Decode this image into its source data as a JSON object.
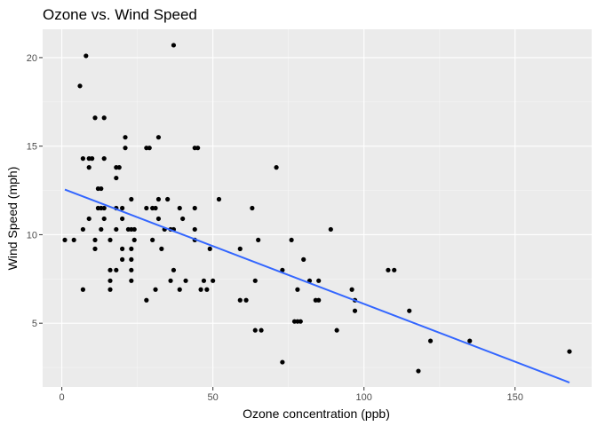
{
  "chart_data": {
    "type": "scatter",
    "title": "Ozone vs. Wind Speed",
    "xlabel": "Ozone concentration (ppb)",
    "ylabel": "Wind Speed (mph)",
    "xlim": [
      -6.35,
      175.35
    ],
    "ylim": [
      1.4,
      21.6
    ],
    "x_ticks": [
      0,
      50,
      100,
      150
    ],
    "x_minor_ticks": [
      25,
      75,
      125
    ],
    "y_ticks": [
      5,
      10,
      15,
      20
    ],
    "y_minor_ticks": [
      2.5,
      7.5,
      12.5,
      17.5
    ],
    "grid": true,
    "legend": "none",
    "colors": {
      "panel_background": "#ebebeb",
      "grid_major": "#ffffff",
      "point": "#000000",
      "fit_line": "#3366ff"
    },
    "points": [
      {
        "x": 1,
        "y": 9.7
      },
      {
        "x": 4,
        "y": 9.7
      },
      {
        "x": 6,
        "y": 18.4
      },
      {
        "x": 7,
        "y": 6.9
      },
      {
        "x": 7,
        "y": 10.3
      },
      {
        "x": 7,
        "y": 14.3
      },
      {
        "x": 8,
        "y": 20.1
      },
      {
        "x": 9,
        "y": 10.9
      },
      {
        "x": 9,
        "y": 13.8
      },
      {
        "x": 9,
        "y": 14.3
      },
      {
        "x": 10,
        "y": 14.3
      },
      {
        "x": 11,
        "y": 9.2
      },
      {
        "x": 11,
        "y": 9.7
      },
      {
        "x": 11,
        "y": 16.6
      },
      {
        "x": 12,
        "y": 11.5
      },
      {
        "x": 12,
        "y": 12.6
      },
      {
        "x": 13,
        "y": 10.3
      },
      {
        "x": 13,
        "y": 11.5
      },
      {
        "x": 13,
        "y": 12.6
      },
      {
        "x": 14,
        "y": 10.9
      },
      {
        "x": 14,
        "y": 11.5
      },
      {
        "x": 14,
        "y": 14.3
      },
      {
        "x": 14,
        "y": 16.6
      },
      {
        "x": 16,
        "y": 6.9
      },
      {
        "x": 16,
        "y": 7.4
      },
      {
        "x": 16,
        "y": 8.0
      },
      {
        "x": 16,
        "y": 9.7
      },
      {
        "x": 18,
        "y": 8.0
      },
      {
        "x": 18,
        "y": 10.3
      },
      {
        "x": 18,
        "y": 11.5
      },
      {
        "x": 18,
        "y": 13.2
      },
      {
        "x": 18,
        "y": 13.8
      },
      {
        "x": 19,
        "y": 13.8
      },
      {
        "x": 20,
        "y": 8.6
      },
      {
        "x": 20,
        "y": 9.2
      },
      {
        "x": 20,
        "y": 10.9
      },
      {
        "x": 20,
        "y": 11.5
      },
      {
        "x": 21,
        "y": 14.9
      },
      {
        "x": 21,
        "y": 15.5
      },
      {
        "x": 22,
        "y": 10.3
      },
      {
        "x": 23,
        "y": 7.4
      },
      {
        "x": 23,
        "y": 8.0
      },
      {
        "x": 23,
        "y": 8.6
      },
      {
        "x": 23,
        "y": 9.2
      },
      {
        "x": 23,
        "y": 10.3
      },
      {
        "x": 23,
        "y": 12.0
      },
      {
        "x": 24,
        "y": 9.7
      },
      {
        "x": 24,
        "y": 10.3
      },
      {
        "x": 28,
        "y": 6.3
      },
      {
        "x": 28,
        "y": 11.5
      },
      {
        "x": 28,
        "y": 14.9
      },
      {
        "x": 29,
        "y": 14.9
      },
      {
        "x": 30,
        "y": 9.7
      },
      {
        "x": 30,
        "y": 11.5
      },
      {
        "x": 31,
        "y": 6.9
      },
      {
        "x": 31,
        "y": 11.5
      },
      {
        "x": 32,
        "y": 10.9
      },
      {
        "x": 32,
        "y": 12.0
      },
      {
        "x": 32,
        "y": 15.5
      },
      {
        "x": 33,
        "y": 9.2
      },
      {
        "x": 34,
        "y": 10.3
      },
      {
        "x": 35,
        "y": 12.0
      },
      {
        "x": 36,
        "y": 7.4
      },
      {
        "x": 36,
        "y": 10.3
      },
      {
        "x": 37,
        "y": 8.0
      },
      {
        "x": 37,
        "y": 10.3
      },
      {
        "x": 37,
        "y": 20.7
      },
      {
        "x": 39,
        "y": 6.9
      },
      {
        "x": 39,
        "y": 11.5
      },
      {
        "x": 40,
        "y": 10.9
      },
      {
        "x": 41,
        "y": 7.4
      },
      {
        "x": 44,
        "y": 9.7
      },
      {
        "x": 44,
        "y": 10.3
      },
      {
        "x": 44,
        "y": 11.5
      },
      {
        "x": 44,
        "y": 14.9
      },
      {
        "x": 45,
        "y": 14.9
      },
      {
        "x": 46,
        "y": 6.9
      },
      {
        "x": 47,
        "y": 7.4
      },
      {
        "x": 48,
        "y": 6.9
      },
      {
        "x": 49,
        "y": 9.2
      },
      {
        "x": 50,
        "y": 7.4
      },
      {
        "x": 52,
        "y": 12.0
      },
      {
        "x": 59,
        "y": 6.3
      },
      {
        "x": 59,
        "y": 9.2
      },
      {
        "x": 61,
        "y": 6.3
      },
      {
        "x": 63,
        "y": 11.5
      },
      {
        "x": 64,
        "y": 4.6
      },
      {
        "x": 64,
        "y": 7.4
      },
      {
        "x": 65,
        "y": 9.7
      },
      {
        "x": 66,
        "y": 4.6
      },
      {
        "x": 71,
        "y": 13.8
      },
      {
        "x": 73,
        "y": 2.8
      },
      {
        "x": 73,
        "y": 8.0
      },
      {
        "x": 76,
        "y": 9.7
      },
      {
        "x": 77,
        "y": 5.1
      },
      {
        "x": 78,
        "y": 5.1
      },
      {
        "x": 78,
        "y": 6.9
      },
      {
        "x": 79,
        "y": 5.1
      },
      {
        "x": 80,
        "y": 8.6
      },
      {
        "x": 82,
        "y": 7.4
      },
      {
        "x": 84,
        "y": 6.3
      },
      {
        "x": 85,
        "y": 6.3
      },
      {
        "x": 85,
        "y": 7.4
      },
      {
        "x": 89,
        "y": 10.3
      },
      {
        "x": 91,
        "y": 4.6
      },
      {
        "x": 96,
        "y": 6.9
      },
      {
        "x": 97,
        "y": 5.7
      },
      {
        "x": 97,
        "y": 6.3
      },
      {
        "x": 108,
        "y": 8.0
      },
      {
        "x": 110,
        "y": 8.0
      },
      {
        "x": 115,
        "y": 5.7
      },
      {
        "x": 118,
        "y": 2.3
      },
      {
        "x": 122,
        "y": 4.0
      },
      {
        "x": 135,
        "y": 4.0
      },
      {
        "x": 168,
        "y": 3.4
      }
    ],
    "fit_line": {
      "x": [
        1,
        168
      ],
      "y": [
        12.55,
        1.65
      ]
    }
  }
}
